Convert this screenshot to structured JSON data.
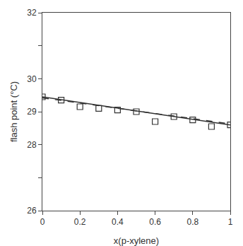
{
  "chart_data": {
    "type": "line",
    "xlabel": "x(p-xylene)",
    "ylabel": "flash point (°C)",
    "xlim": [
      0,
      1
    ],
    "ylim": [
      26,
      32
    ],
    "xticks": [
      0,
      0.2,
      0.4,
      0.6,
      0.8,
      1
    ],
    "yticks": [
      26,
      {
        "value": 27,
        "label": null
      },
      28,
      29,
      30,
      {
        "value": 31,
        "label": null
      },
      32
    ],
    "grid": false,
    "series": [
      {
        "type": "line",
        "line_style": "solid",
        "color": "#333333",
        "x": [
          0.0,
          1.0
        ],
        "values": [
          29.45,
          28.6
        ]
      },
      {
        "type": "line",
        "line_style": "dashed",
        "color": "#333333",
        "x": [
          0.0,
          1.0
        ],
        "values": [
          29.42,
          28.63
        ]
      },
      {
        "type": "scatter",
        "marker": "square-open",
        "color": "#333333",
        "x": [
          0.0,
          0.1,
          0.2,
          0.3,
          0.4,
          0.5,
          0.6,
          0.7,
          0.8,
          0.9,
          1.0
        ],
        "values": [
          29.45,
          29.35,
          29.15,
          29.1,
          29.05,
          29.0,
          28.7,
          28.85,
          28.75,
          28.55,
          28.6
        ]
      }
    ]
  }
}
